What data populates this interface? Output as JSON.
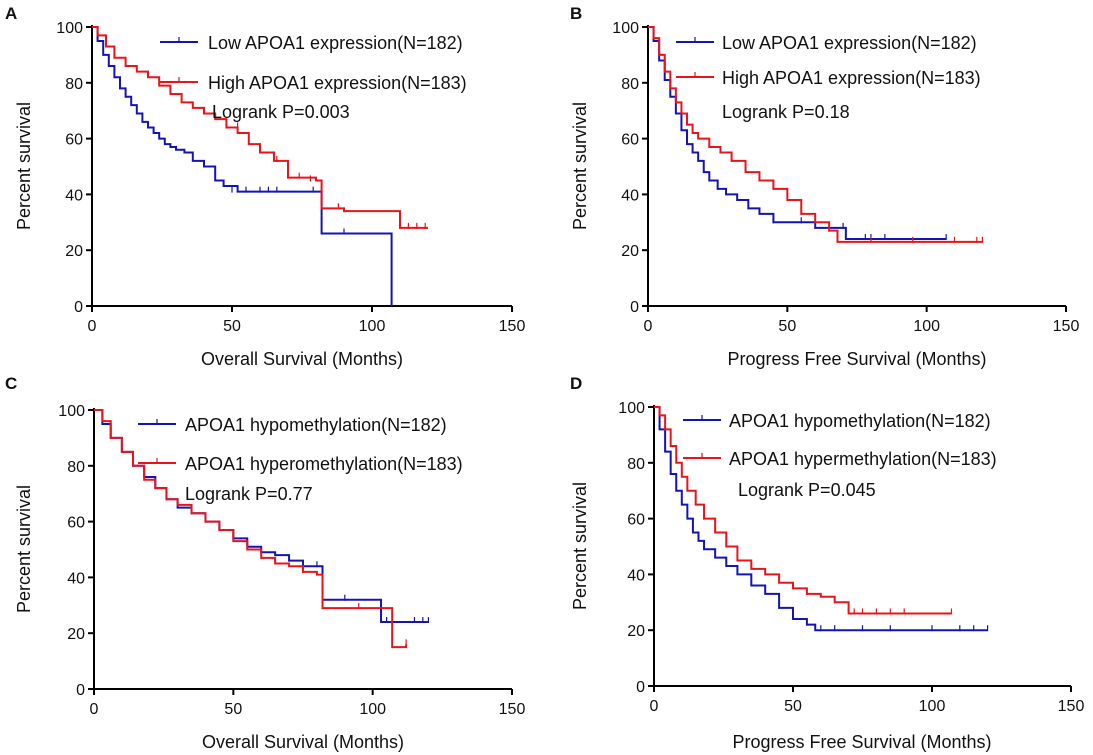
{
  "colors": {
    "low": "#1414b4",
    "high": "#e8141b",
    "axis": "#000000"
  },
  "chart_data": [
    {
      "type": "line",
      "panel": "A",
      "xlabel": "Overall Survival (Months)",
      "ylabel": "Percent survival",
      "xlim": [
        0,
        150
      ],
      "ylim": [
        0,
        100
      ],
      "xticks": [
        0,
        50,
        100,
        150
      ],
      "yticks": [
        0,
        20,
        40,
        60,
        80,
        100
      ],
      "annotation": "Logrank P=0.003",
      "series": [
        {
          "name": "Low APOA1 expression(N=182)",
          "color_key": "low",
          "x": [
            0,
            2,
            4,
            6,
            8,
            10,
            12,
            14,
            16,
            18,
            20,
            22,
            24,
            26,
            28,
            30,
            33,
            36,
            40,
            44,
            47,
            52,
            60,
            70,
            80,
            82,
            95,
            106,
            107
          ],
          "y": [
            100,
            95,
            90,
            86,
            82,
            78,
            75,
            72,
            69,
            66,
            64,
            62,
            60,
            58,
            57,
            56,
            55,
            52,
            50,
            45,
            43,
            41,
            41,
            41,
            41,
            26,
            26,
            26,
            0
          ],
          "censor_x": [
            50,
            55,
            60,
            63,
            66,
            79,
            82,
            90
          ],
          "censor_y": [
            41,
            41,
            41,
            41,
            41,
            41,
            26,
            26
          ]
        },
        {
          "name": "High APOA1 expression(N=183)",
          "color_key": "high",
          "x": [
            0,
            2,
            5,
            8,
            12,
            16,
            20,
            24,
            28,
            32,
            36,
            40,
            44,
            48,
            52,
            56,
            60,
            65,
            70,
            75,
            80,
            82,
            90,
            110,
            120
          ],
          "y": [
            100,
            97,
            93,
            89,
            86,
            84,
            82,
            79,
            76,
            73,
            71,
            69,
            67,
            64,
            62,
            58,
            55,
            52,
            46,
            46,
            45,
            35,
            34,
            28,
            28
          ],
          "censor_x": [
            52,
            66,
            70,
            74,
            78,
            88,
            110,
            113,
            116,
            119
          ],
          "censor_y": [
            64,
            52,
            46,
            46,
            45,
            35,
            28,
            28,
            28,
            28
          ]
        }
      ]
    },
    {
      "type": "line",
      "panel": "B",
      "xlabel": "Progress Free Survival (Months)",
      "ylabel": "Percent survival",
      "xlim": [
        0,
        150
      ],
      "ylim": [
        0,
        100
      ],
      "xticks": [
        0,
        50,
        100,
        150
      ],
      "yticks": [
        0,
        20,
        40,
        60,
        80,
        100
      ],
      "annotation": "Logrank P=0.18",
      "series": [
        {
          "name": "Low APOA1 expression(N=182)",
          "color_key": "low",
          "x": [
            0,
            2,
            4,
            6,
            8,
            10,
            12,
            14,
            16,
            18,
            20,
            22,
            25,
            28,
            32,
            36,
            40,
            45,
            55,
            60,
            70,
            71,
            107
          ],
          "y": [
            100,
            95,
            88,
            81,
            75,
            69,
            63,
            58,
            55,
            52,
            48,
            45,
            42,
            40,
            38,
            35,
            33,
            30,
            30,
            28,
            28,
            24,
            24
          ],
          "censor_x": [
            45,
            55,
            60,
            65,
            70,
            78,
            80,
            85,
            107
          ],
          "censor_y": [
            30,
            30,
            28,
            28,
            28,
            24,
            24,
            24,
            24
          ]
        },
        {
          "name": "High APOA1 expression(N=183)",
          "color_key": "high",
          "x": [
            0,
            2,
            4,
            6,
            8,
            10,
            12,
            14,
            16,
            18,
            22,
            26,
            30,
            35,
            40,
            45,
            50,
            55,
            60,
            65,
            68,
            120
          ],
          "y": [
            100,
            96,
            90,
            84,
            78,
            73,
            69,
            65,
            62,
            60,
            57,
            55,
            52,
            48,
            45,
            42,
            38,
            33,
            30,
            27,
            23,
            23
          ],
          "censor_x": [
            30,
            45,
            55,
            65,
            80,
            95,
            110,
            118,
            120
          ],
          "censor_y": [
            52,
            42,
            33,
            27,
            23,
            23,
            23,
            23,
            23
          ]
        }
      ]
    },
    {
      "type": "line",
      "panel": "C",
      "xlabel": "Overall Survival (Months)",
      "ylabel": "Percent survival",
      "xlim": [
        0,
        150
      ],
      "ylim": [
        0,
        100
      ],
      "xticks": [
        0,
        50,
        100,
        150
      ],
      "yticks": [
        0,
        20,
        40,
        60,
        80,
        100
      ],
      "annotation": "Logrank P=0.77",
      "series": [
        {
          "name": "APOA1 hypomethylation(N=182)",
          "color_key": "low",
          "x": [
            0,
            3,
            6,
            10,
            14,
            18,
            22,
            26,
            30,
            35,
            40,
            45,
            50,
            55,
            60,
            65,
            70,
            75,
            82,
            90,
            103,
            120
          ],
          "y": [
            100,
            95,
            90,
            85,
            80,
            76,
            72,
            68,
            65,
            63,
            60,
            57,
            54,
            51,
            49,
            48,
            46,
            44,
            32,
            32,
            24,
            24
          ],
          "censor_x": [
            35,
            50,
            60,
            70,
            80,
            90,
            105,
            115,
            118,
            120
          ],
          "censor_y": [
            63,
            54,
            49,
            46,
            44,
            32,
            24,
            24,
            24,
            24
          ]
        },
        {
          "name": "APOA1 hyperomethylation(N=183)",
          "color_key": "high",
          "x": [
            0,
            3,
            6,
            10,
            14,
            18,
            22,
            26,
            30,
            35,
            40,
            45,
            50,
            55,
            60,
            65,
            70,
            75,
            80,
            82,
            100,
            107,
            110,
            112
          ],
          "y": [
            100,
            96,
            90,
            85,
            80,
            75,
            72,
            68,
            66,
            63,
            60,
            57,
            53,
            50,
            47,
            45,
            44,
            42,
            41,
            29,
            29,
            15,
            15,
            16
          ],
          "censor_x": [
            30,
            45,
            60,
            75,
            82,
            95,
            112
          ],
          "censor_y": [
            66,
            57,
            47,
            42,
            29,
            29,
            16
          ]
        }
      ]
    },
    {
      "type": "line",
      "panel": "D",
      "xlabel": "Progress Free Survival (Months)",
      "ylabel": "Percent survival",
      "xlim": [
        0,
        150
      ],
      "ylim": [
        0,
        100
      ],
      "xticks": [
        0,
        50,
        100,
        150
      ],
      "yticks": [
        0,
        20,
        40,
        60,
        80,
        100
      ],
      "annotation": "Logrank P=0.045",
      "series": [
        {
          "name": "APOA1 hypomethylation(N=182)",
          "color_key": "low",
          "x": [
            0,
            2,
            4,
            6,
            8,
            10,
            12,
            14,
            16,
            18,
            22,
            26,
            30,
            35,
            40,
            45,
            50,
            55,
            58,
            120
          ],
          "y": [
            100,
            92,
            84,
            76,
            70,
            65,
            60,
            55,
            52,
            49,
            46,
            43,
            40,
            36,
            33,
            28,
            24,
            22,
            20,
            20
          ],
          "censor_x": [
            45,
            55,
            60,
            65,
            75,
            85,
            100,
            110,
            115,
            120
          ],
          "censor_y": [
            28,
            22,
            20,
            20,
            20,
            20,
            20,
            20,
            20,
            20
          ]
        },
        {
          "name": "APOA1 hypermethylation(N=183)",
          "color_key": "high",
          "x": [
            0,
            2,
            4,
            6,
            8,
            10,
            12,
            15,
            18,
            22,
            26,
            30,
            35,
            40,
            45,
            50,
            55,
            60,
            65,
            70,
            107
          ],
          "y": [
            100,
            97,
            92,
            86,
            80,
            75,
            70,
            65,
            60,
            55,
            50,
            45,
            42,
            40,
            37,
            35,
            33,
            32,
            30,
            26,
            26
          ],
          "censor_x": [
            40,
            55,
            65,
            72,
            75,
            80,
            85,
            90,
            107
          ],
          "censor_y": [
            40,
            33,
            30,
            26,
            26,
            26,
            26,
            26,
            26
          ]
        }
      ]
    }
  ]
}
